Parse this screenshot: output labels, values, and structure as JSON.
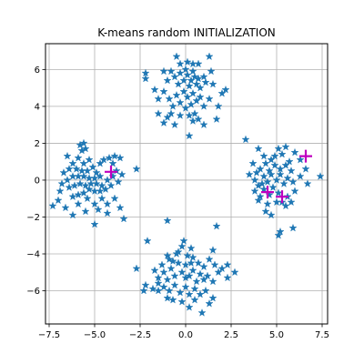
{
  "chart_data": {
    "type": "scatter",
    "title": "K-means random INITIALIZATION",
    "xlabel": "",
    "ylabel": "",
    "xlim": [
      -7.7,
      7.8
    ],
    "ylim": [
      -7.8,
      7.4
    ],
    "xticks": [
      -7.5,
      -5.0,
      -2.5,
      0.0,
      2.5,
      5.0,
      7.5
    ],
    "xtick_labels": [
      "−7.5",
      "−5.0",
      "−2.5",
      "0.0",
      "2.5",
      "5.0",
      "7.5"
    ],
    "yticks": [
      -6,
      -4,
      -2,
      0,
      2,
      4,
      6
    ],
    "ytick_labels": [
      "−6",
      "−4",
      "−2",
      "0",
      "2",
      "4",
      "6"
    ],
    "grid": true,
    "series": [
      {
        "marker": "star",
        "color": "#1f77b4",
        "points": [
          [
            -0.5,
            6.7
          ],
          [
            -0.3,
            6.3
          ],
          [
            0.1,
            6.4
          ],
          [
            0.4,
            6.3
          ],
          [
            0.7,
            6.3
          ],
          [
            1.3,
            6.7
          ],
          [
            1.4,
            5.9
          ],
          [
            -2.2,
            5.8
          ],
          [
            -2.2,
            5.5
          ],
          [
            -1.7,
            4.9
          ],
          [
            -1.2,
            5.9
          ],
          [
            -1.0,
            5.4
          ],
          [
            -0.8,
            5.9
          ],
          [
            -0.6,
            5.6
          ],
          [
            -0.4,
            5.2
          ],
          [
            -0.3,
            5.8
          ],
          [
            -0.1,
            5.4
          ],
          [
            0.0,
            6.0
          ],
          [
            0.1,
            5.7
          ],
          [
            0.2,
            5.1
          ],
          [
            0.3,
            5.4
          ],
          [
            0.4,
            5.9
          ],
          [
            0.5,
            5.6
          ],
          [
            0.6,
            5.2
          ],
          [
            0.7,
            5.5
          ],
          [
            0.8,
            5.0
          ],
          [
            1.0,
            5.6
          ],
          [
            1.1,
            5.3
          ],
          [
            1.5,
            5.2
          ],
          [
            2.0,
            4.7
          ],
          [
            2.2,
            4.9
          ],
          [
            -1.5,
            4.4
          ],
          [
            -1.2,
            4.8
          ],
          [
            -0.9,
            4.4
          ],
          [
            -0.7,
            4.0
          ],
          [
            -0.5,
            4.6
          ],
          [
            -0.3,
            4.2
          ],
          [
            -0.1,
            4.8
          ],
          [
            0.1,
            4.5
          ],
          [
            0.3,
            4.1
          ],
          [
            0.4,
            4.7
          ],
          [
            0.6,
            4.3
          ],
          [
            0.8,
            4.5
          ],
          [
            1.0,
            4.0
          ],
          [
            1.3,
            4.4
          ],
          [
            1.8,
            4.0
          ],
          [
            -1.5,
            3.6
          ],
          [
            -1.0,
            3.4
          ],
          [
            -0.6,
            3.0
          ],
          [
            -0.3,
            3.5
          ],
          [
            0.2,
            3.5
          ],
          [
            0.4,
            3.2
          ],
          [
            0.7,
            3.3
          ],
          [
            1.0,
            3.0
          ],
          [
            1.7,
            3.3
          ],
          [
            0.2,
            2.4
          ],
          [
            -1.2,
            3.1
          ],
          [
            0.0,
            3.9
          ],
          [
            -0.8,
            3.6
          ],
          [
            0.5,
            3.6
          ],
          [
            -5.6,
            2.0
          ],
          [
            -5.5,
            1.7
          ],
          [
            -5.7,
            1.6
          ],
          [
            -5.9,
            1.2
          ],
          [
            -5.3,
            1.1
          ],
          [
            -5.6,
            0.9
          ],
          [
            -6.2,
            0.9
          ],
          [
            -6.4,
            0.6
          ],
          [
            -6.0,
            0.6
          ],
          [
            -5.7,
            0.5
          ],
          [
            -5.4,
            0.5
          ],
          [
            -5.1,
            0.7
          ],
          [
            -4.9,
            0.4
          ],
          [
            -4.7,
            0.2
          ],
          [
            -5.0,
            0.1
          ],
          [
            -5.3,
            0.1
          ],
          [
            -5.6,
            0.2
          ],
          [
            -5.9,
            0.2
          ],
          [
            -6.2,
            0.2
          ],
          [
            -6.5,
            0.0
          ],
          [
            -6.8,
            -0.2
          ],
          [
            -6.4,
            -0.4
          ],
          [
            -6.1,
            -0.3
          ],
          [
            -5.8,
            -0.2
          ],
          [
            -5.5,
            -0.3
          ],
          [
            -5.2,
            -0.2
          ],
          [
            -4.9,
            -0.2
          ],
          [
            -4.6,
            -0.3
          ],
          [
            -4.3,
            0.0
          ],
          [
            -4.0,
            0.2
          ],
          [
            -3.8,
            0.5
          ],
          [
            -4.0,
            0.9
          ],
          [
            -4.2,
            1.2
          ],
          [
            -3.9,
            1.3
          ],
          [
            -3.6,
            1.2
          ],
          [
            -4.5,
            1.1
          ],
          [
            -4.7,
            0.9
          ],
          [
            -2.7,
            0.6
          ],
          [
            -3.5,
            0.3
          ],
          [
            -3.7,
            -0.1
          ],
          [
            -4.1,
            -0.3
          ],
          [
            -4.4,
            -0.5
          ],
          [
            -4.7,
            -0.6
          ],
          [
            -5.0,
            -0.6
          ],
          [
            -5.3,
            -0.5
          ],
          [
            -5.6,
            -0.7
          ],
          [
            -5.9,
            -0.8
          ],
          [
            -6.2,
            -0.9
          ],
          [
            -6.9,
            -0.6
          ],
          [
            -7.0,
            -1.1
          ],
          [
            -7.3,
            -1.4
          ],
          [
            -6.6,
            -1.5
          ],
          [
            -5.9,
            -1.3
          ],
          [
            -5.4,
            -1.0
          ],
          [
            -5.0,
            -1.3
          ],
          [
            -4.6,
            -1.0
          ],
          [
            -4.3,
            -1.3
          ],
          [
            -3.9,
            -1.0
          ],
          [
            -3.6,
            -1.5
          ],
          [
            -3.4,
            -2.1
          ],
          [
            -4.3,
            -1.8
          ],
          [
            -5.0,
            -2.4
          ],
          [
            -5.5,
            -1.7
          ],
          [
            -6.2,
            -1.9
          ],
          [
            -4.8,
            -1.6
          ],
          [
            -6.5,
            1.3
          ],
          [
            -5.8,
            1.9
          ],
          [
            -6.7,
            0.4
          ],
          [
            3.3,
            2.2
          ],
          [
            4.0,
            1.7
          ],
          [
            4.3,
            1.3
          ],
          [
            4.7,
            1.1
          ],
          [
            5.1,
            1.7
          ],
          [
            5.3,
            1.4
          ],
          [
            5.7,
            1.0
          ],
          [
            6.0,
            1.5
          ],
          [
            6.3,
            1.1
          ],
          [
            3.7,
            0.9
          ],
          [
            4.1,
            0.6
          ],
          [
            4.4,
            0.9
          ],
          [
            4.6,
            0.5
          ],
          [
            4.9,
            0.8
          ],
          [
            5.2,
            0.6
          ],
          [
            5.5,
            0.8
          ],
          [
            5.8,
            0.5
          ],
          [
            3.5,
            0.3
          ],
          [
            3.8,
            0.0
          ],
          [
            4.0,
            -0.3
          ],
          [
            4.3,
            0.2
          ],
          [
            4.5,
            -0.1
          ],
          [
            4.7,
            0.3
          ],
          [
            5.0,
            0.0
          ],
          [
            5.2,
            0.3
          ],
          [
            5.4,
            -0.2
          ],
          [
            5.6,
            0.1
          ],
          [
            5.9,
            -0.1
          ],
          [
            6.3,
            0.2
          ],
          [
            6.7,
            -0.2
          ],
          [
            7.4,
            0.2
          ],
          [
            3.8,
            -0.6
          ],
          [
            4.1,
            -0.9
          ],
          [
            4.3,
            -0.5
          ],
          [
            4.6,
            -0.8
          ],
          [
            4.8,
            -0.4
          ],
          [
            5.1,
            -0.7
          ],
          [
            5.3,
            -1.2
          ],
          [
            5.6,
            -0.9
          ],
          [
            6.0,
            -0.6
          ],
          [
            4.0,
            -1.1
          ],
          [
            4.5,
            -1.3
          ],
          [
            5.0,
            -1.2
          ],
          [
            5.5,
            -1.4
          ],
          [
            4.7,
            -1.9
          ],
          [
            5.2,
            -2.8
          ],
          [
            5.1,
            -3.0
          ],
          [
            5.9,
            -2.6
          ],
          [
            4.4,
            -1.7
          ],
          [
            5.8,
            -1.2
          ],
          [
            3.9,
            0.4
          ],
          [
            4.9,
            1.3
          ],
          [
            5.5,
            1.8
          ],
          [
            4.2,
            -0.2
          ],
          [
            6.6,
            0.6
          ],
          [
            -1.0,
            -2.2
          ],
          [
            -2.1,
            -3.3
          ],
          [
            -0.1,
            -3.3
          ],
          [
            1.7,
            -2.5
          ],
          [
            1.5,
            -3.8
          ],
          [
            -0.4,
            -3.9
          ],
          [
            -0.2,
            -3.6
          ],
          [
            0.3,
            -3.7
          ],
          [
            0.1,
            -4.1
          ],
          [
            -1.0,
            -4.1
          ],
          [
            -0.7,
            -4.4
          ],
          [
            -0.5,
            -4.0
          ],
          [
            0.4,
            -4.2
          ],
          [
            0.7,
            -4.5
          ],
          [
            1.0,
            -4.7
          ],
          [
            1.3,
            -4.3
          ],
          [
            1.6,
            -4.6
          ],
          [
            2.0,
            -4.8
          ],
          [
            2.3,
            -4.6
          ],
          [
            -2.7,
            -4.8
          ],
          [
            -1.7,
            -4.9
          ],
          [
            -1.3,
            -4.6
          ],
          [
            -1.5,
            -5.3
          ],
          [
            -1.2,
            -5.0
          ],
          [
            -1.0,
            -5.4
          ],
          [
            -0.8,
            -4.8
          ],
          [
            -0.6,
            -5.2
          ],
          [
            -0.4,
            -4.5
          ],
          [
            -0.2,
            -5.0
          ],
          [
            0.0,
            -4.6
          ],
          [
            0.2,
            -5.2
          ],
          [
            0.4,
            -4.9
          ],
          [
            0.6,
            -5.5
          ],
          [
            0.8,
            -5.1
          ],
          [
            1.0,
            -5.4
          ],
          [
            1.2,
            -5.2
          ],
          [
            1.5,
            -5.5
          ],
          [
            1.8,
            -5.0
          ],
          [
            2.3,
            -5.3
          ],
          [
            2.7,
            -5.0
          ],
          [
            -2.2,
            -5.7
          ],
          [
            -2.3,
            -6.0
          ],
          [
            -1.8,
            -5.9
          ],
          [
            -1.5,
            -6.0
          ],
          [
            -1.2,
            -5.8
          ],
          [
            -0.9,
            -6.0
          ],
          [
            -0.6,
            -5.7
          ],
          [
            -0.3,
            -6.1
          ],
          [
            0.0,
            -5.8
          ],
          [
            0.2,
            -6.2
          ],
          [
            0.5,
            -5.9
          ],
          [
            0.8,
            -6.2
          ],
          [
            1.1,
            -6.0
          ],
          [
            1.5,
            -6.4
          ],
          [
            -1.0,
            -6.4
          ],
          [
            -0.7,
            -6.5
          ],
          [
            -0.2,
            -6.6
          ],
          [
            0.2,
            -6.9
          ],
          [
            0.5,
            -6.5
          ],
          [
            0.9,
            -7.2
          ],
          [
            1.3,
            -6.7
          ],
          [
            -0.9,
            -4.3
          ],
          [
            0.3,
            -4.5
          ],
          [
            -1.5,
            -5.6
          ],
          [
            0.0,
            -5.3
          ]
        ]
      }
    ],
    "centroids": {
      "marker": "plus",
      "color": "#bf00bf",
      "points": [
        [
          -4.1,
          0.45
        ],
        [
          6.6,
          1.3
        ],
        [
          4.5,
          -0.65
        ],
        [
          5.3,
          -0.9
        ]
      ]
    }
  }
}
